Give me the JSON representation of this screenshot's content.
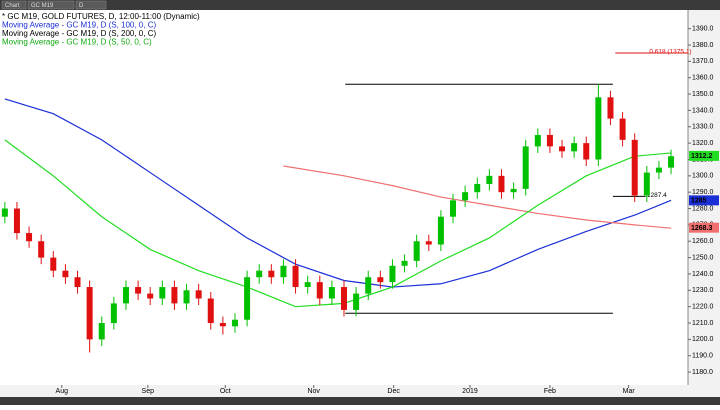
{
  "toolbar": [
    "Chart",
    "GC M19",
    "D"
  ],
  "chart_data": {
    "type": "candlestick",
    "legend": [
      {
        "text": "* GC M19, GOLD FUTURES, D, 12:00-11:00 (Dynamic)",
        "color": "#000000"
      },
      {
        "text": "Moving Average - GC M19, D (S, 100, 0, C)",
        "color": "#1a2fd6"
      },
      {
        "text": "Moving Average - GC M19, D (S, 200, 0, C)",
        "color": "#000000"
      },
      {
        "text": "Moving Average - GC M19, D (S, 50, 0, C)",
        "color": "#12a812"
      }
    ],
    "x": [
      0,
      1,
      2,
      3,
      4,
      5,
      6,
      7,
      8,
      9,
      10,
      11,
      12,
      13,
      14,
      15,
      16,
      17,
      18,
      19,
      20,
      21,
      22,
      23,
      24,
      25,
      26,
      27,
      28,
      29,
      30,
      31,
      32,
      33,
      34,
      35,
      36,
      37,
      38,
      39,
      40,
      41,
      42,
      43,
      44,
      45,
      46,
      47,
      48,
      49,
      50,
      51,
      52,
      53,
      54,
      55
    ],
    "open": [
      1275,
      1280,
      1265,
      1260,
      1250,
      1242,
      1238,
      1232,
      1200,
      1210,
      1222,
      1232,
      1228,
      1225,
      1232,
      1222,
      1230,
      1225,
      1210,
      1208,
      1212,
      1238,
      1242,
      1238,
      1245,
      1232,
      1235,
      1225,
      1232,
      1218,
      1228,
      1238,
      1235,
      1245,
      1248,
      1260,
      1258,
      1275,
      1285,
      1290,
      1295,
      1300,
      1290,
      1292,
      1318,
      1325,
      1318,
      1315,
      1320,
      1310,
      1348,
      1335,
      1322,
      1288,
      1302,
      1305
    ],
    "high": [
      1284,
      1284,
      1269,
      1264,
      1254,
      1246,
      1242,
      1236,
      1214,
      1226,
      1236,
      1236,
      1232,
      1236,
      1236,
      1234,
      1234,
      1229,
      1214,
      1216,
      1242,
      1246,
      1246,
      1249,
      1249,
      1239,
      1239,
      1236,
      1236,
      1232,
      1242,
      1242,
      1249,
      1252,
      1264,
      1264,
      1279,
      1289,
      1294,
      1299,
      1304,
      1304,
      1296,
      1322,
      1329,
      1329,
      1322,
      1324,
      1324,
      1356,
      1352,
      1339,
      1326,
      1306,
      1309,
      1316
    ],
    "low": [
      1271,
      1261,
      1256,
      1246,
      1238,
      1234,
      1228,
      1192,
      1196,
      1206,
      1218,
      1224,
      1221,
      1221,
      1218,
      1218,
      1221,
      1206,
      1203,
      1204,
      1208,
      1234,
      1234,
      1234,
      1228,
      1228,
      1221,
      1221,
      1214,
      1214,
      1224,
      1231,
      1231,
      1241,
      1244,
      1254,
      1254,
      1271,
      1281,
      1286,
      1291,
      1286,
      1286,
      1288,
      1314,
      1314,
      1311,
      1311,
      1306,
      1306,
      1331,
      1318,
      1284,
      1284,
      1298,
      1301
    ],
    "close": [
      1280,
      1265,
      1260,
      1250,
      1242,
      1238,
      1232,
      1200,
      1210,
      1222,
      1232,
      1228,
      1225,
      1232,
      1222,
      1230,
      1225,
      1210,
      1208,
      1212,
      1238,
      1242,
      1238,
      1245,
      1232,
      1235,
      1225,
      1232,
      1218,
      1228,
      1238,
      1235,
      1245,
      1248,
      1260,
      1258,
      1275,
      1285,
      1290,
      1295,
      1300,
      1290,
      1292,
      1318,
      1325,
      1318,
      1315,
      1320,
      1310,
      1348,
      1335,
      1322,
      1288,
      1302,
      1305,
      1312
    ],
    "up_color": "#00c000",
    "down_color": "#e01010",
    "series": [
      {
        "color": "#1a2fd6",
        "x": [
          0,
          4,
          8,
          12,
          16,
          20,
          24,
          28,
          32,
          36,
          40,
          44,
          48,
          52,
          55
        ],
        "values": [
          1347,
          1338,
          1322,
          1302,
          1282,
          1262,
          1246,
          1236,
          1232,
          1234,
          1242,
          1255,
          1266,
          1276,
          1285
        ]
      },
      {
        "color": "#f07070",
        "x": [
          23,
          28,
          32,
          36,
          40,
          44,
          48,
          52,
          55
        ],
        "values": [
          1306,
          1300,
          1294,
          1287,
          1282,
          1277,
          1273,
          1270,
          1268
        ]
      },
      {
        "color": "#22dd22",
        "x": [
          0,
          4,
          8,
          12,
          16,
          20,
          24,
          28,
          32,
          36,
          40,
          44,
          48,
          52,
          55
        ],
        "values": [
          1322,
          1300,
          1275,
          1255,
          1242,
          1232,
          1220,
          1222,
          1232,
          1248,
          1262,
          1282,
          1300,
          1312,
          1314
        ]
      }
    ],
    "annotations": [
      {
        "value": 1356,
        "x": [
          28.1,
          50.2
        ]
      },
      {
        "value": 1216,
        "x": [
          28.1,
          50.2
        ]
      },
      {
        "value": 1375.1,
        "x": [
          50.4,
          56.4
        ],
        "label": "0.618 (1375.1)",
        "color": "#e01010"
      },
      {
        "value": 1287.4,
        "x": [
          50.2,
          52.9
        ],
        "label": "1287.4",
        "color": "#000000"
      }
    ],
    "price_labels": [
      {
        "value": 1312.2,
        "color": "#22dd22"
      },
      {
        "value": 1285.0,
        "color": "#1a2fd6"
      },
      {
        "value": 1268.3,
        "color": "#f07070"
      }
    ],
    "xlim": [
      -0.4,
      56.4
    ],
    "xticks": [
      {
        "value": 4.7,
        "label": "Aug"
      },
      {
        "value": 11.8,
        "label": "Sep"
      },
      {
        "value": 18.2,
        "label": "Oct"
      },
      {
        "value": 25.5,
        "label": "Nov"
      },
      {
        "value": 32.1,
        "label": "Dec"
      },
      {
        "value": 38.4,
        "label": "2019"
      },
      {
        "value": 45,
        "label": "Feb"
      },
      {
        "value": 51.5,
        "label": "Mar"
      }
    ],
    "ylim": [
      1172.1,
      1401.4
    ],
    "yticks": [
      {
        "value": 1180,
        "label": "1180.0"
      },
      {
        "value": 1190,
        "label": "1190.0"
      },
      {
        "value": 1200,
        "label": "1200.0"
      },
      {
        "value": 1210,
        "label": "1210.0"
      },
      {
        "value": 1220,
        "label": "1220.0"
      },
      {
        "value": 1230,
        "label": "1230.0"
      },
      {
        "value": 1240,
        "label": "1240.0"
      },
      {
        "value": 1250,
        "label": "1250.0"
      },
      {
        "value": 1260,
        "label": "1260.0"
      },
      {
        "value": 1270,
        "label": "1270.0"
      },
      {
        "value": 1280,
        "label": "1280.0"
      },
      {
        "value": 1290,
        "label": "1290.0"
      },
      {
        "value": 1300,
        "label": "1300.0"
      },
      {
        "value": 1310,
        "label": "1310.0"
      },
      {
        "value": 1320,
        "label": "1320.0"
      },
      {
        "value": 1330,
        "label": "1330.0"
      },
      {
        "value": 1340,
        "label": "1340.0"
      },
      {
        "value": 1350,
        "label": "1350.0"
      },
      {
        "value": 1360,
        "label": "1360.0"
      },
      {
        "value": 1370,
        "label": "1370.0"
      },
      {
        "value": 1380,
        "label": "1380.0"
      },
      {
        "value": 1390,
        "label": "1390.0"
      }
    ]
  }
}
